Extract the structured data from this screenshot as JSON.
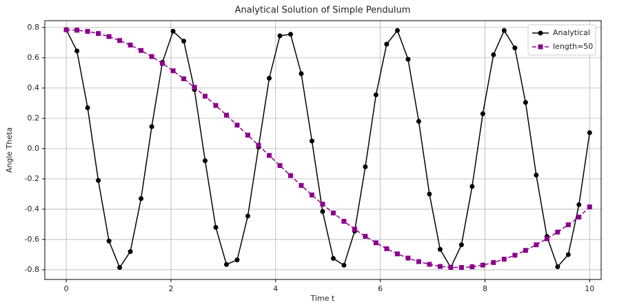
{
  "chart_data": {
    "type": "line",
    "title": "Analytical Solution of Simple Pendulum",
    "xlabel": "Time t",
    "ylabel": "Angle Theta",
    "x": [
      0,
      0.204,
      0.408,
      0.612,
      0.816,
      1.02,
      1.224,
      1.429,
      1.633,
      1.837,
      2.041,
      2.245,
      2.449,
      2.653,
      2.857,
      3.061,
      3.265,
      3.469,
      3.673,
      3.878,
      4.082,
      4.286,
      4.49,
      4.694,
      4.898,
      5.102,
      5.306,
      5.51,
      5.714,
      5.918,
      6.122,
      6.327,
      6.531,
      6.735,
      6.939,
      7.143,
      7.347,
      7.551,
      7.755,
      7.959,
      8.163,
      8.367,
      8.571,
      8.776,
      8.98,
      9.184,
      9.388,
      9.592,
      9.796,
      10
    ],
    "series": [
      {
        "name": "Analytical",
        "color": "#000000",
        "marker": "circle",
        "dash": false,
        "values": [
          0.785,
          0.645,
          0.27,
          -0.21,
          -0.61,
          -0.785,
          -0.68,
          -0.33,
          0.145,
          0.57,
          0.775,
          0.71,
          0.39,
          -0.08,
          -0.52,
          -0.765,
          -0.735,
          -0.445,
          0.01,
          0.465,
          0.745,
          0.755,
          0.495,
          0.05,
          -0.415,
          -0.725,
          -0.77,
          -0.545,
          -0.12,
          0.355,
          0.69,
          0.78,
          0.59,
          0.18,
          -0.3,
          -0.665,
          -0.785,
          -0.635,
          -0.25,
          0.23,
          0.62,
          0.78,
          0.665,
          0.305,
          -0.175,
          -0.58,
          -0.78,
          -0.7,
          -0.37,
          0.105
        ]
      },
      {
        "name": "length=50",
        "color": "#8b008b",
        "marker": "square",
        "dash": true,
        "values": [
          0.785,
          0.782,
          0.774,
          0.76,
          0.74,
          0.714,
          0.684,
          0.648,
          0.608,
          0.563,
          0.514,
          0.461,
          0.405,
          0.346,
          0.285,
          0.221,
          0.155,
          0.089,
          0.022,
          -0.045,
          -0.112,
          -0.178,
          -0.243,
          -0.306,
          -0.367,
          -0.425,
          -0.48,
          -0.532,
          -0.579,
          -0.622,
          -0.661,
          -0.695,
          -0.723,
          -0.746,
          -0.764,
          -0.778,
          -0.784,
          -0.785,
          -0.78,
          -0.769,
          -0.752,
          -0.73,
          -0.704,
          -0.672,
          -0.635,
          -0.595,
          -0.551,
          -0.503,
          -0.452,
          -0.385
        ]
      }
    ],
    "xlim": [
      -0.41,
      10.22
    ],
    "xticks": [
      0,
      2,
      4,
      6,
      8,
      10
    ],
    "ylim": [
      -0.864,
      0.845
    ],
    "yticks": [
      -0.8,
      -0.6,
      -0.4,
      -0.2,
      {
        "value": 0,
        "label": "0.0"
      },
      0.2,
      0.4,
      0.6,
      0.8
    ],
    "grid": true,
    "legend": "upper right"
  }
}
